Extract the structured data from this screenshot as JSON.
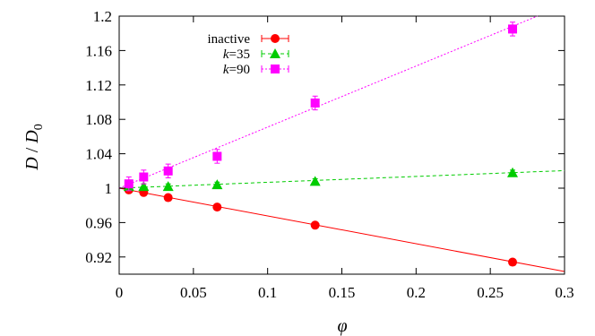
{
  "chart_data": {
    "type": "scatter",
    "xlabel": "φ",
    "ylabel_main": "D",
    "ylabel_sep": " / ",
    "ylabel_d0": "D",
    "ylabel_sub": "0",
    "xlim": [
      0,
      0.3
    ],
    "ylim": [
      0.9,
      1.2
    ],
    "x_ticks": [
      0,
      0.05,
      0.1,
      0.15,
      0.2,
      0.25,
      0.3
    ],
    "x_tick_labels": [
      "0",
      "0.05",
      "0.1",
      "0.15",
      "0.2",
      "0.25",
      "0.3"
    ],
    "y_ticks": [
      0.92,
      0.96,
      1.0,
      1.04,
      1.08,
      1.12,
      1.16,
      1.2
    ],
    "y_tick_labels": [
      "0.92",
      "0.96",
      "1",
      "1.04",
      "1.08",
      "1.12",
      "1.16",
      "1.2"
    ],
    "grid": false,
    "legend_placement": "top-left",
    "series": [
      {
        "name": "inactive",
        "label_italic": "",
        "label_rest": "inactive",
        "color": "#ff0000",
        "marker": "circle",
        "line_style": "solid",
        "fit": {
          "intercept": 1.0,
          "slope": -0.323
        },
        "points": [
          {
            "x": 0.0065,
            "y": 0.998,
            "err": 0.002
          },
          {
            "x": 0.0165,
            "y": 0.995,
            "err": 0.002
          },
          {
            "x": 0.033,
            "y": 0.989,
            "err": 0.002
          },
          {
            "x": 0.066,
            "y": 0.978,
            "err": 0.002
          },
          {
            "x": 0.132,
            "y": 0.957,
            "err": 0.002
          },
          {
            "x": 0.265,
            "y": 0.914,
            "err": 0.002
          }
        ]
      },
      {
        "name": "k=35",
        "label_italic": "k",
        "label_rest": "=35",
        "color": "#00cc00",
        "marker": "triangle",
        "line_style": "dashed",
        "fit": {
          "intercept": 1.0,
          "slope": 0.068
        },
        "points": [
          {
            "x": 0.0065,
            "y": 1.002,
            "err": 0.003
          },
          {
            "x": 0.0165,
            "y": 1.002,
            "err": 0.003
          },
          {
            "x": 0.033,
            "y": 1.002,
            "err": 0.003
          },
          {
            "x": 0.066,
            "y": 1.004,
            "err": 0.003
          },
          {
            "x": 0.132,
            "y": 1.008,
            "err": 0.003
          },
          {
            "x": 0.265,
            "y": 1.018,
            "err": 0.003
          }
        ]
      },
      {
        "name": "k=90",
        "label_italic": "k",
        "label_rest": "=90",
        "color": "#ff00ff",
        "marker": "square",
        "line_style": "dotted",
        "fit": {
          "intercept": 1.0,
          "slope": 0.71
        },
        "points": [
          {
            "x": 0.0065,
            "y": 1.005,
            "err": 0.008
          },
          {
            "x": 0.0165,
            "y": 1.013,
            "err": 0.008
          },
          {
            "x": 0.033,
            "y": 1.02,
            "err": 0.008
          },
          {
            "x": 0.066,
            "y": 1.037,
            "err": 0.008
          },
          {
            "x": 0.132,
            "y": 1.099,
            "err": 0.008
          },
          {
            "x": 0.265,
            "y": 1.185,
            "err": 0.008
          }
        ]
      }
    ]
  }
}
